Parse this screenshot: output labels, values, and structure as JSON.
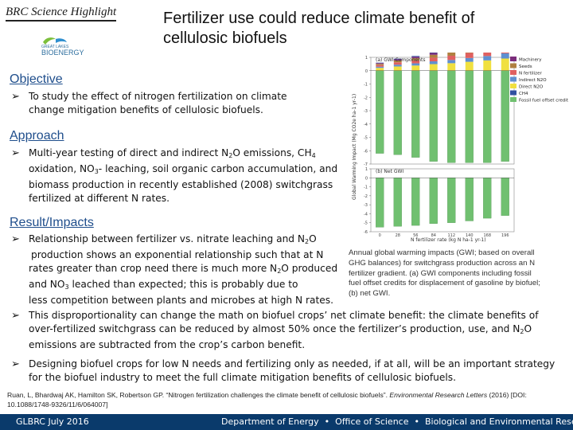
{
  "header": {
    "brand": "BRC Science Highlight",
    "logo_text": "GREAT LAKES BIOENERGY",
    "title_line1": "Fertilizer use could reduce climate benefit of",
    "title_line2": "cellulosic biofuels"
  },
  "objective": {
    "heading": "Objective",
    "b1_line1": "To study the effect of nitrogen fertilization on climate",
    "b1_line2": "change mitigation benefits of cellulosic biofuels."
  },
  "approach": {
    "heading": "Approach",
    "l1a": "Multi-year testing of direct and indirect N",
    "l1b": "O emissions, CH",
    "l2a": "oxidation, NO",
    "l2b": "- leaching, soil organic carbon accumulation, and",
    "l3": "biomass production in recently established (2008) switchgrass",
    "l4": "fertilized at different N rates."
  },
  "results": {
    "heading": "Result/Impacts",
    "r1_l1a": "Relationship between fertilizer vs. nitrate leaching and N",
    "r1_l1b": "O",
    "r1_l2": "production shows an exponential relationship such that at N",
    "r1_l3a": "rates greater than crop need there is much more N",
    "r1_l3b": "O produced",
    "r1_l4a": "and NO",
    "r1_l4b": " leached than expected; this is probably due to",
    "r1_l5": "less competition between plants and microbes at high N rates.",
    "r2_l1": "This disproportionality can change the math on biofuel crops’ net climate benefit: the climate benefits of",
    "r2_l2": "over-fertilized switchgrass can be reduced by almost 50% once the fertilizer’s production, use, and N",
    "r2_l2b": "O",
    "r2_l3": "emissions are subtracted from the crop’s carbon benefit.",
    "r3_l1": "Designing biofuel crops for low N needs and fertilizing only as needed, if at all, will be an important strategy",
    "r3_l2": "for the biofuel industry to meet the full climate mitigation benefits of cellulosic biofuels."
  },
  "sub": {
    "two": "2",
    "three": "3",
    "four": "4"
  },
  "figure": {
    "panel_a": "(a) GWI Components",
    "panel_b": "(b) Net GWI",
    "ylabel": "Global Warming Impact (Mg CO2e ha-1 yr-1)",
    "xlabel": "N fertilizer rate (kg N ha-1 yr-1)",
    "legend": [
      "Machinery",
      "Seeds",
      "N fertilizer",
      "Indirect N2O",
      "Direct N2O",
      "CH4",
      "Fossil fuel offset credit"
    ],
    "colors": [
      "#7b2d7b",
      "#b08040",
      "#e06060",
      "#6090d0",
      "#f0e040",
      "#3050a0",
      "#70c070"
    ],
    "yticks_a": [
      "1",
      "0",
      "-1",
      "-2",
      "-3",
      "-4",
      "-5",
      "-6",
      "-7"
    ],
    "yticks_b": [
      "1",
      "0",
      "-1",
      "-2",
      "-3",
      "-4",
      "-5",
      "-6"
    ],
    "xticks": [
      "0",
      "28",
      "56",
      "84",
      "112",
      "140",
      "168",
      "196"
    ]
  },
  "caption": {
    "l1": "Annual global warming impacts (GWI; based on overall",
    "l2": "GHG balances) for switchgrass production across an N",
    "l3": "fertilizer gradient. (a) GWI components including fossil",
    "l4": "fuel offset credits for displacement of gasoline by biofuel;",
    "l5": "(b) net GWI."
  },
  "reference": {
    "l1a": "Ruan, L, Bhardwaj AK, Hamilton SK, Robertson GP. “Nitrogen fertilization challenges the climate benefit of cellulosic biofuels”. ",
    "l1b": "Environmental Research Letters",
    "l1c": " (2016) [DOI:",
    "l2": "10.1088/1748-9326/11/6/064007]"
  },
  "footer": {
    "left": "GLBRC July 2016",
    "right": "Department of Energy  •  Office of Science  •  Biological and Environmental Research"
  }
}
